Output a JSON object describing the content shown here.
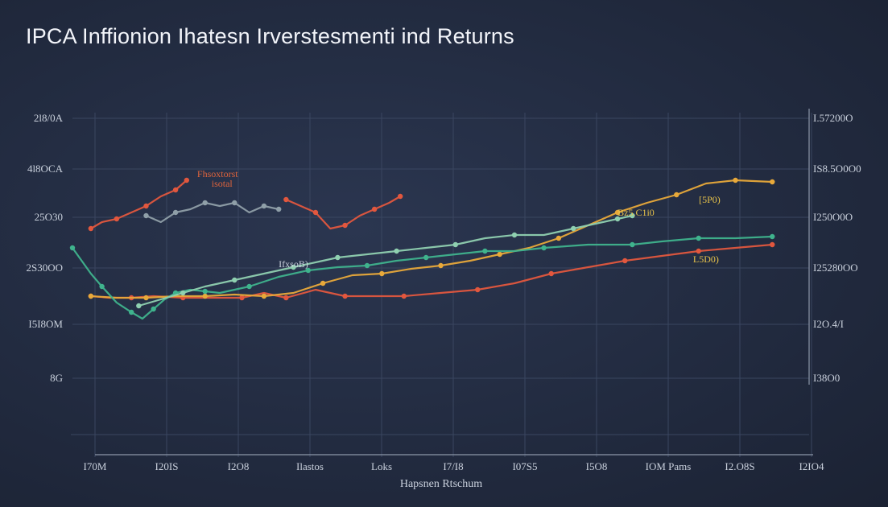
{
  "title": "IPCA Inffionion Ihatesn Irverstesmenti ind Returns",
  "chart_data": {
    "type": "line",
    "title": "IPCA Inffionion Ihatesn Irverstesmenti ind Returns",
    "xlabel": "Hapsnen Rtschum",
    "ylabel": "",
    "x_ticks": [
      "I70M",
      "I20IS",
      "I2O8",
      "Ilastos",
      "Loks",
      "I7/I8",
      "I07S5",
      "I5O8",
      "IOM Pams",
      "I2.O8S",
      "I2IO4"
    ],
    "y_ticks_left": [
      "2l8/0A",
      "4l8OCA",
      "25O30",
      "2S30OO",
      "I5I8OM",
      "8G"
    ],
    "y_ticks_right": [
      "I.57200O",
      "IS8.5O0O0",
      "I250O0O",
      "I25280OO",
      "I2O.4/I",
      "I38O0"
    ],
    "xlim": [
      0,
      100
    ],
    "ylim": [
      0,
      100
    ],
    "grid": true,
    "annotations": [
      {
        "text": "Fhsoxtorst",
        "x": 19.7,
        "y": 80.0,
        "color": "#e0643c"
      },
      {
        "text": "isotal",
        "x": 20.3,
        "y": 77.0,
        "color": "#e0643c"
      },
      {
        "text": "IfxsoB)",
        "x": 30.0,
        "y": 52.0,
        "color": "#c9d0dc"
      },
      {
        "text": "Bz5.C1i0",
        "x": 76.5,
        "y": 68.0,
        "color": "#e8c34a"
      },
      {
        "text": "[5P0)",
        "x": 86.5,
        "y": 72.0,
        "color": "#e8c34a"
      },
      {
        "text": "L5D0)",
        "x": 86.0,
        "y": 53.5,
        "color": "#e8c34a"
      }
    ],
    "series": [
      {
        "color": "#e2573e",
        "points": [
          [
            2.5,
            64
          ],
          [
            4,
            66
          ],
          [
            6,
            67
          ],
          [
            8,
            69
          ],
          [
            10,
            71
          ],
          [
            12,
            74
          ],
          [
            14,
            76
          ],
          [
            15.5,
            79
          ]
        ]
      },
      {
        "color": "#e2573e",
        "points": [
          [
            29,
            73
          ],
          [
            31,
            71
          ],
          [
            33,
            69
          ],
          [
            35,
            64
          ],
          [
            37,
            65
          ],
          [
            39,
            68
          ],
          [
            41,
            70
          ],
          [
            43,
            72
          ],
          [
            44.5,
            74
          ]
        ]
      },
      {
        "color": "#8f9fa8",
        "points": [
          [
            10,
            68
          ],
          [
            12,
            66
          ],
          [
            14,
            69
          ],
          [
            16,
            70
          ],
          [
            18,
            72
          ],
          [
            20,
            71
          ],
          [
            22,
            72
          ],
          [
            24,
            69
          ],
          [
            26,
            71
          ],
          [
            28,
            70
          ]
        ]
      },
      {
        "color": "#e2573e",
        "points": [
          [
            2.5,
            43
          ],
          [
            5,
            42.5
          ],
          [
            8,
            42.5
          ],
          [
            11,
            43
          ],
          [
            15,
            42.5
          ],
          [
            20,
            42.5
          ],
          [
            23,
            42.5
          ],
          [
            26,
            44
          ],
          [
            29,
            42.5
          ],
          [
            33,
            45
          ],
          [
            37,
            43
          ],
          [
            41,
            43
          ],
          [
            45,
            43
          ],
          [
            50,
            44
          ],
          [
            55,
            45
          ],
          [
            60,
            47
          ],
          [
            65,
            50
          ],
          [
            70,
            52
          ],
          [
            75,
            54
          ],
          [
            80,
            55.5
          ],
          [
            85,
            57
          ],
          [
            90,
            58
          ],
          [
            95,
            59
          ]
        ]
      },
      {
        "color": "#e8a93a",
        "points": [
          [
            2.5,
            43
          ],
          [
            6,
            42.5
          ],
          [
            10,
            42.5
          ],
          [
            14,
            43
          ],
          [
            18,
            43
          ],
          [
            22,
            43.5
          ],
          [
            26,
            43
          ],
          [
            30,
            44
          ],
          [
            34,
            47
          ],
          [
            38,
            49.5
          ],
          [
            42,
            50
          ],
          [
            46,
            51.5
          ],
          [
            50,
            52.5
          ],
          [
            54,
            54
          ],
          [
            58,
            56
          ],
          [
            62,
            58
          ],
          [
            66,
            61
          ],
          [
            70,
            65
          ],
          [
            74,
            69
          ],
          [
            78,
            72
          ],
          [
            82,
            74.5
          ],
          [
            86,
            78
          ],
          [
            90,
            79
          ],
          [
            95,
            78.5
          ]
        ]
      },
      {
        "color": "#3fb38d",
        "points": [
          [
            0,
            58
          ],
          [
            2.5,
            50
          ],
          [
            4,
            46
          ],
          [
            6,
            41
          ],
          [
            8,
            38
          ],
          [
            9.5,
            36
          ],
          [
            11,
            39
          ],
          [
            12.5,
            42
          ],
          [
            14,
            44
          ],
          [
            16,
            45
          ],
          [
            18,
            44.5
          ],
          [
            20,
            44
          ],
          [
            24,
            46
          ],
          [
            28,
            49
          ],
          [
            32,
            51
          ],
          [
            36,
            52
          ],
          [
            40,
            52.5
          ],
          [
            44,
            54
          ],
          [
            48,
            55
          ],
          [
            52,
            56
          ],
          [
            56,
            57
          ],
          [
            60,
            57
          ],
          [
            64,
            58
          ],
          [
            70,
            59
          ],
          [
            76,
            59
          ],
          [
            80,
            60
          ],
          [
            85,
            61
          ],
          [
            90,
            61
          ],
          [
            95,
            61.5
          ]
        ]
      },
      {
        "color": "#8fd0b0",
        "points": [
          [
            9,
            40
          ],
          [
            12,
            42
          ],
          [
            15,
            44
          ],
          [
            18,
            46
          ],
          [
            22,
            48
          ],
          [
            26,
            50
          ],
          [
            30,
            52
          ],
          [
            34,
            54
          ],
          [
            36,
            55
          ],
          [
            40,
            56
          ],
          [
            44,
            57
          ],
          [
            48,
            58
          ],
          [
            52,
            59
          ],
          [
            56,
            61
          ],
          [
            60,
            62
          ],
          [
            64,
            62
          ],
          [
            68,
            64
          ],
          [
            72,
            66
          ],
          [
            74,
            67
          ],
          [
            76,
            68
          ]
        ]
      }
    ]
  }
}
